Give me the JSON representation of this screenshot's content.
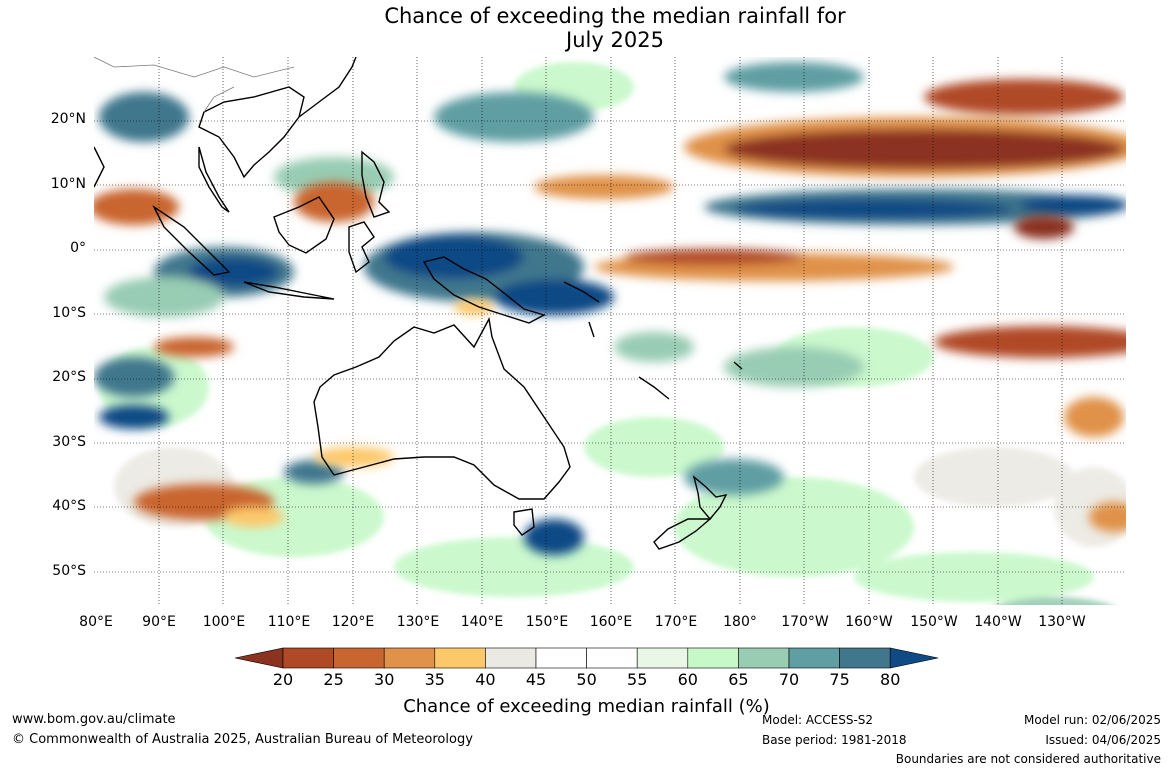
{
  "title_line1": "Chance of exceeding the median rainfall for",
  "title_line2": "July 2025",
  "lat_labels": [
    "20°N",
    "10°N",
    "0°",
    "10°S",
    "20°S",
    "30°S",
    "40°S",
    "50°S"
  ],
  "lon_labels": [
    "80°E",
    "90°E",
    "100°E",
    "110°E",
    "120°E",
    "130°E",
    "140°E",
    "150°E",
    "160°E",
    "170°E",
    "180°",
    "170°W",
    "160°W",
    "150°W",
    "140°W",
    "130°W"
  ],
  "colorbar": {
    "ticks": [
      "20",
      "25",
      "30",
      "35",
      "40",
      "45",
      "50",
      "55",
      "60",
      "65",
      "70",
      "75",
      "80"
    ],
    "colors": [
      "#8b3220",
      "#b04a26",
      "#c9652f",
      "#e0924a",
      "#fdc86a",
      "#ebe9e3",
      "#ffffff",
      "#ffffff",
      "#e8f7e6",
      "#c6f8c8",
      "#98ccb3",
      "#5f9ea3",
      "#41778d",
      "#0f4a85"
    ],
    "label": "Chance of exceeding median rainfall (%)"
  },
  "footer": {
    "website": "www.bom.gov.au/climate",
    "copyright": "© Commonwealth of Australia 2025, Australian Bureau of Meteorology",
    "model": "Model: ACCESS-S2",
    "base_period": "Base period: 1981-2018",
    "model_run": "Model run: 02/06/2025",
    "issued": "Issued: 04/06/2025",
    "disclaimer": "Boundaries are not considered authoritative"
  }
}
